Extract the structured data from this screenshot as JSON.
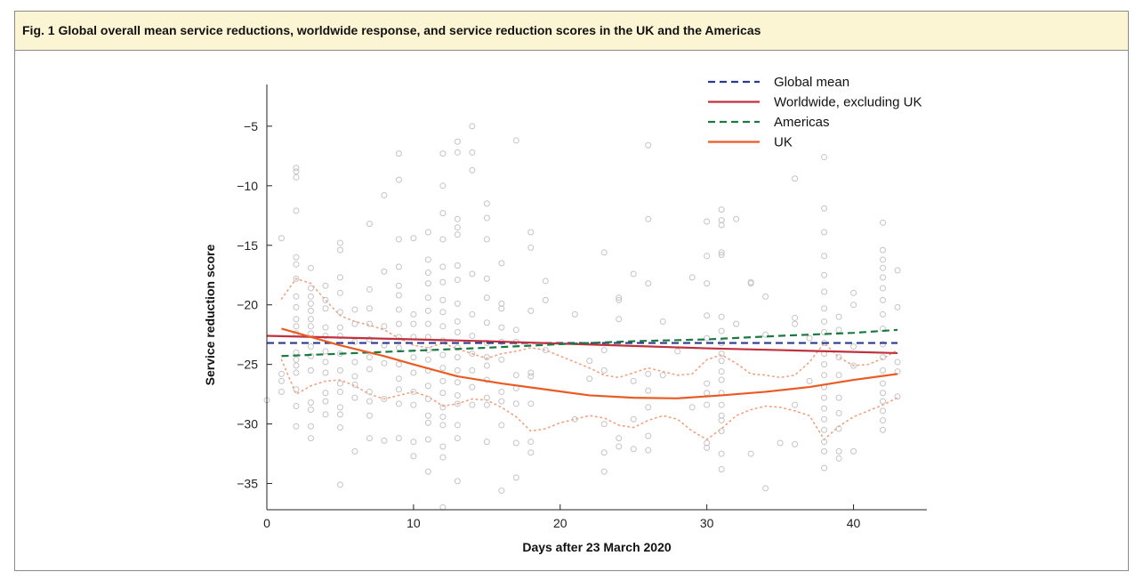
{
  "figure": {
    "caption": "Fig. 1 Global overall mean service reductions, worldwide response, and service reduction scores in the UK and the Americas"
  },
  "chart_data": {
    "type": "scatter",
    "xlabel": "Days after 23 March 2020",
    "ylabel": "Service reduction score",
    "xlim": [
      0,
      45
    ],
    "ylim": [
      -37.2,
      -1.5
    ],
    "xticks": [
      0,
      10,
      20,
      30,
      40
    ],
    "yticks": [
      -5,
      -10,
      -15,
      -20,
      -25,
      -30,
      -35
    ],
    "xtick_labels": [
      "0",
      "10",
      "20",
      "30",
      "40"
    ],
    "ytick_labels": [
      "−5",
      "−10",
      "−15",
      "−20",
      "−25",
      "−30",
      "−35"
    ],
    "legend_position": "top-right",
    "points": [
      [
        0,
        -28
      ],
      [
        1,
        -14.4
      ],
      [
        1,
        -25.8
      ],
      [
        1,
        -26.4
      ],
      [
        1,
        -27.3
      ],
      [
        2,
        -8.5
      ],
      [
        2,
        -8.8
      ],
      [
        2,
        -9.3
      ],
      [
        2,
        -12.1
      ],
      [
        2,
        -16
      ],
      [
        2,
        -16.6
      ],
      [
        2,
        -17.8
      ],
      [
        2,
        -19.3
      ],
      [
        2,
        -20.2
      ],
      [
        2,
        -21.2
      ],
      [
        2,
        -21.8
      ],
      [
        2,
        -22.4
      ],
      [
        2,
        -24
      ],
      [
        2,
        -24.6
      ],
      [
        2,
        -25.1
      ],
      [
        2,
        -25.7
      ],
      [
        2,
        -27.1
      ],
      [
        2,
        -28.5
      ],
      [
        2,
        -30.2
      ],
      [
        3,
        -16.9
      ],
      [
        3,
        -18.6
      ],
      [
        3,
        -19.3
      ],
      [
        3,
        -19.9
      ],
      [
        3,
        -20.5
      ],
      [
        3,
        -21.2
      ],
      [
        3,
        -21.8
      ],
      [
        3,
        -22.4
      ],
      [
        3,
        -23.5
      ],
      [
        3,
        -24.3
      ],
      [
        3,
        -25.5
      ],
      [
        3,
        -28.2
      ],
      [
        3,
        -28.8
      ],
      [
        3,
        -30.2
      ],
      [
        3,
        -31.2
      ],
      [
        4,
        -18.4
      ],
      [
        4,
        -19.6
      ],
      [
        4,
        -20.3
      ],
      [
        4,
        -21.9
      ],
      [
        4,
        -22.6
      ],
      [
        4,
        -23.9
      ],
      [
        4,
        -24.8
      ],
      [
        4,
        -25.7
      ],
      [
        4,
        -27.4
      ],
      [
        4,
        -28.1
      ],
      [
        4,
        -29.2
      ],
      [
        5,
        -14.8
      ],
      [
        5,
        -15.4
      ],
      [
        5,
        -17.7
      ],
      [
        5,
        -19
      ],
      [
        5,
        -20.6
      ],
      [
        5,
        -21.9
      ],
      [
        5,
        -22.6
      ],
      [
        5,
        -24.1
      ],
      [
        5,
        -25.5
      ],
      [
        5,
        -26.6
      ],
      [
        5,
        -27.3
      ],
      [
        5,
        -28.6
      ],
      [
        5,
        -29.2
      ],
      [
        5,
        -30.3
      ],
      [
        5,
        -35.1
      ],
      [
        6,
        -20.4
      ],
      [
        6,
        -21.6
      ],
      [
        6,
        -23.1
      ],
      [
        6,
        -24.8
      ],
      [
        6,
        -26
      ],
      [
        6,
        -26.7
      ],
      [
        6,
        -27.8
      ],
      [
        6,
        -32.3
      ],
      [
        7,
        -13.2
      ],
      [
        7,
        -18.7
      ],
      [
        7,
        -20.3
      ],
      [
        7,
        -21.6
      ],
      [
        7,
        -22.9
      ],
      [
        7,
        -24.4
      ],
      [
        7,
        -25.4
      ],
      [
        7,
        -27.3
      ],
      [
        7,
        -28.1
      ],
      [
        7,
        -29.3
      ],
      [
        7,
        -31.2
      ],
      [
        8,
        -10.8
      ],
      [
        8,
        -17.2
      ],
      [
        8,
        -21.8
      ],
      [
        8,
        -23.4
      ],
      [
        8,
        -24.9
      ],
      [
        8,
        -27.9
      ],
      [
        8,
        -31.4
      ],
      [
        9,
        -7.3
      ],
      [
        9,
        -9.5
      ],
      [
        9,
        -14.5
      ],
      [
        9,
        -16.8
      ],
      [
        9,
        -18.4
      ],
      [
        9,
        -19.2
      ],
      [
        9,
        -20.4
      ],
      [
        9,
        -21.6
      ],
      [
        9,
        -22.7
      ],
      [
        9,
        -23.6
      ],
      [
        9,
        -25
      ],
      [
        9,
        -26.2
      ],
      [
        9,
        -27.1
      ],
      [
        9,
        -28.3
      ],
      [
        9,
        -31.2
      ],
      [
        10,
        -14.4
      ],
      [
        10,
        -20.8
      ],
      [
        10,
        -21.6
      ],
      [
        10,
        -22.7
      ],
      [
        10,
        -24.4
      ],
      [
        10,
        -25.7
      ],
      [
        10,
        -27.3
      ],
      [
        10,
        -28.4
      ],
      [
        10,
        -31.5
      ],
      [
        10,
        -32.7
      ],
      [
        11,
        -13.9
      ],
      [
        11,
        -16.2
      ],
      [
        11,
        -17.3
      ],
      [
        11,
        -18.2
      ],
      [
        11,
        -19.4
      ],
      [
        11,
        -20.5
      ],
      [
        11,
        -21.6
      ],
      [
        11,
        -22.7
      ],
      [
        11,
        -23.8
      ],
      [
        11,
        -24.6
      ],
      [
        11,
        -25.5
      ],
      [
        11,
        -26.8
      ],
      [
        11,
        -27.9
      ],
      [
        11,
        -29.3
      ],
      [
        11,
        -29.9
      ],
      [
        11,
        -31.3
      ],
      [
        11,
        -34
      ],
      [
        12,
        -7.3
      ],
      [
        12,
        -10
      ],
      [
        12,
        -12.3
      ],
      [
        12,
        -14.5
      ],
      [
        12,
        -16.8
      ],
      [
        12,
        -18.1
      ],
      [
        12,
        -19.6
      ],
      [
        12,
        -20.6
      ],
      [
        12,
        -21.8
      ],
      [
        12,
        -23
      ],
      [
        12,
        -24.2
      ],
      [
        12,
        -25.3
      ],
      [
        12,
        -26.4
      ],
      [
        12,
        -27.4
      ],
      [
        12,
        -28.6
      ],
      [
        12,
        -29.4
      ],
      [
        12,
        -30.1
      ],
      [
        12,
        -31.9
      ],
      [
        12,
        -32.8
      ],
      [
        12,
        -37
      ],
      [
        13,
        -6.3
      ],
      [
        13,
        -7.2
      ],
      [
        13,
        -12.8
      ],
      [
        13,
        -13.5
      ],
      [
        13,
        -14.1
      ],
      [
        13,
        -16.7
      ],
      [
        13,
        -17.9
      ],
      [
        13,
        -19.9
      ],
      [
        13,
        -21.4
      ],
      [
        13,
        -22.3
      ],
      [
        13,
        -23.6
      ],
      [
        13,
        -24.4
      ],
      [
        13,
        -25.5
      ],
      [
        13,
        -26.5
      ],
      [
        13,
        -27.6
      ],
      [
        13,
        -28.3
      ],
      [
        13,
        -30.1
      ],
      [
        13,
        -31.2
      ],
      [
        13,
        -34.8
      ],
      [
        14,
        -5
      ],
      [
        14,
        -7.2
      ],
      [
        14,
        -8.7
      ],
      [
        14,
        -17.4
      ],
      [
        14,
        -20.8
      ],
      [
        14,
        -22.6
      ],
      [
        14,
        -24.1
      ],
      [
        14,
        -25.5
      ],
      [
        14,
        -26.9
      ],
      [
        14,
        -28.4
      ],
      [
        15,
        -11.5
      ],
      [
        15,
        -12.7
      ],
      [
        15,
        -14.5
      ],
      [
        15,
        -17.8
      ],
      [
        15,
        -19.4
      ],
      [
        15,
        -21.5
      ],
      [
        15,
        -23.2
      ],
      [
        15,
        -24.4
      ],
      [
        15,
        -25.1
      ],
      [
        15,
        -26.3
      ],
      [
        15,
        -27.8
      ],
      [
        15,
        -28.4
      ],
      [
        15,
        -31.5
      ],
      [
        16,
        -16.5
      ],
      [
        16,
        -19.9
      ],
      [
        16,
        -20.3
      ],
      [
        16,
        -21.9
      ],
      [
        16,
        -23.1
      ],
      [
        16,
        -24.6
      ],
      [
        16,
        -27.3
      ],
      [
        16,
        -28.1
      ],
      [
        16,
        -30.1
      ],
      [
        16,
        -35.6
      ],
      [
        17,
        -6.2
      ],
      [
        17,
        -22.1
      ],
      [
        17,
        -23.1
      ],
      [
        17,
        -25.9
      ],
      [
        17,
        -27
      ],
      [
        17,
        -28.3
      ],
      [
        17,
        -31.6
      ],
      [
        17,
        -34.5
      ],
      [
        18,
        -13.9
      ],
      [
        18,
        -15.2
      ],
      [
        18,
        -20.5
      ],
      [
        18,
        -25.7
      ],
      [
        18,
        -26
      ],
      [
        18,
        -28.3
      ],
      [
        18,
        -31.5
      ],
      [
        18,
        -32.4
      ],
      [
        19,
        -18
      ],
      [
        19,
        -19.6
      ],
      [
        19,
        -23.8
      ],
      [
        21,
        -20.8
      ],
      [
        21,
        -29.6
      ],
      [
        22,
        -24.7
      ],
      [
        22,
        -26.2
      ],
      [
        23,
        -15.6
      ],
      [
        23,
        -23.8
      ],
      [
        23,
        -25.5
      ],
      [
        23,
        -30
      ],
      [
        23,
        -32.4
      ],
      [
        23,
        -34
      ],
      [
        24,
        -19.4
      ],
      [
        24,
        -19.6
      ],
      [
        24,
        -21.2
      ],
      [
        24,
        -31.2
      ],
      [
        24,
        -31.9
      ],
      [
        25,
        -17.4
      ],
      [
        25,
        -26.4
      ],
      [
        25,
        -29.6
      ],
      [
        25,
        -32.1
      ],
      [
        26,
        -6.6
      ],
      [
        26,
        -12.8
      ],
      [
        26,
        -18.2
      ],
      [
        26,
        -25.8
      ],
      [
        26,
        -27.2
      ],
      [
        26,
        -28.6
      ],
      [
        26,
        -31
      ],
      [
        26,
        -32.2
      ],
      [
        27,
        -21.4
      ],
      [
        27,
        -25.9
      ],
      [
        28,
        -23.9
      ],
      [
        29,
        -17.7
      ],
      [
        29,
        -28.6
      ],
      [
        30,
        -13
      ],
      [
        30,
        -15.9
      ],
      [
        30,
        -18.2
      ],
      [
        30,
        -20.9
      ],
      [
        30,
        -22.8
      ],
      [
        30,
        -26.6
      ],
      [
        30,
        -27.4
      ],
      [
        30,
        -28.4
      ],
      [
        30,
        -31.6
      ],
      [
        30,
        -32
      ],
      [
        31,
        -12
      ],
      [
        31,
        -12.9
      ],
      [
        31,
        -13.3
      ],
      [
        31,
        -15.6
      ],
      [
        31,
        -15.8
      ],
      [
        31,
        -21
      ],
      [
        31,
        -22.2
      ],
      [
        31,
        -23.2
      ],
      [
        31,
        -24.1
      ],
      [
        31,
        -24.7
      ],
      [
        31,
        -25.6
      ],
      [
        31,
        -26.3
      ],
      [
        31,
        -27.4
      ],
      [
        31,
        -28.4
      ],
      [
        31,
        -29.3
      ],
      [
        31,
        -29.7
      ],
      [
        31,
        -30.6
      ],
      [
        31,
        -32.5
      ],
      [
        31,
        -33.8
      ],
      [
        32,
        -12.8
      ],
      [
        32,
        -21.6
      ],
      [
        33,
        -18.1
      ],
      [
        33,
        -18.2
      ],
      [
        33,
        -32.5
      ],
      [
        34,
        -19.3
      ],
      [
        34,
        -22.5
      ],
      [
        34,
        -35.4
      ],
      [
        35,
        -31.6
      ],
      [
        36,
        -9.4
      ],
      [
        36,
        -21.1
      ],
      [
        36,
        -21.6
      ],
      [
        36,
        -28.4
      ],
      [
        36,
        -31.7
      ],
      [
        37,
        -22.8
      ],
      [
        37,
        -26.4
      ],
      [
        38,
        -7.6
      ],
      [
        38,
        -11.9
      ],
      [
        38,
        -13.9
      ],
      [
        38,
        -15.9
      ],
      [
        38,
        -17.5
      ],
      [
        38,
        -18.9
      ],
      [
        38,
        -20.3
      ],
      [
        38,
        -21.4
      ],
      [
        38,
        -22.3
      ],
      [
        38,
        -23.2
      ],
      [
        38,
        -24.1
      ],
      [
        38,
        -25
      ],
      [
        38,
        -25.9
      ],
      [
        38,
        -26.9
      ],
      [
        38,
        -27.8
      ],
      [
        38,
        -28.7
      ],
      [
        38,
        -29.6
      ],
      [
        38,
        -30.5
      ],
      [
        38,
        -31.5
      ],
      [
        38,
        -32.3
      ],
      [
        38,
        -33.7
      ],
      [
        39,
        -21
      ],
      [
        39,
        -22.1
      ],
      [
        39,
        -24.4
      ],
      [
        39,
        -25.9
      ],
      [
        39,
        -27.8
      ],
      [
        39,
        -29.1
      ],
      [
        39,
        -30.4
      ],
      [
        39,
        -32.3
      ],
      [
        39,
        -32.9
      ],
      [
        40,
        -19
      ],
      [
        40,
        -20
      ],
      [
        40,
        -23.5
      ],
      [
        40,
        -25.1
      ],
      [
        40,
        -32.3
      ],
      [
        42,
        -13.1
      ],
      [
        42,
        -15.4
      ],
      [
        42,
        -16.2
      ],
      [
        42,
        -16.9
      ],
      [
        42,
        -17.7
      ],
      [
        42,
        -18.6
      ],
      [
        42,
        -19.6
      ],
      [
        42,
        -20.8
      ],
      [
        42,
        -22
      ],
      [
        42,
        -23.3
      ],
      [
        42,
        -24.4
      ],
      [
        42,
        -25.5
      ],
      [
        42,
        -26.6
      ],
      [
        42,
        -27.4
      ],
      [
        42,
        -28.1
      ],
      [
        42,
        -28.9
      ],
      [
        42,
        -29.7
      ],
      [
        42,
        -30.5
      ],
      [
        43,
        -17.1
      ],
      [
        43,
        -20.2
      ],
      [
        43,
        -24.8
      ],
      [
        43,
        -25.6
      ],
      [
        43,
        -27.7
      ]
    ],
    "series": [
      {
        "name": "Global mean",
        "style": "dashed",
        "color": "#2b3a8f",
        "x": [
          0,
          43
        ],
        "y": [
          -23.2,
          -23.2
        ]
      },
      {
        "name": "Worldwide, excluding UK",
        "style": "solid",
        "color": "#c0303d",
        "x": [
          0,
          5,
          10,
          15,
          20,
          25,
          30,
          35,
          40,
          43
        ],
        "y": [
          -22.6,
          -22.75,
          -22.9,
          -23.05,
          -23.25,
          -23.45,
          -23.65,
          -23.8,
          -23.95,
          -24.05
        ]
      },
      {
        "name": "Americas",
        "style": "dashed",
        "color": "#1a7a3f",
        "x": [
          1,
          5,
          10,
          15,
          20,
          25,
          30,
          35,
          40,
          43
        ],
        "y": [
          -24.3,
          -24.1,
          -23.85,
          -23.6,
          -23.3,
          -23.05,
          -22.9,
          -22.6,
          -22.35,
          -22.1
        ]
      },
      {
        "name": "UK",
        "style": "solid",
        "color": "#ea5b24",
        "x": [
          1,
          3,
          5,
          8,
          10,
          13,
          16,
          19,
          22,
          25,
          28,
          31,
          34,
          37,
          40,
          43
        ],
        "y": [
          -22,
          -22.7,
          -23.4,
          -24.3,
          -25,
          -26,
          -26.6,
          -27.1,
          -27.6,
          -27.8,
          -27.85,
          -27.6,
          -27.3,
          -26.9,
          -26.3,
          -25.8
        ]
      }
    ],
    "confidence_band": {
      "color": "#f4a07e",
      "style": "dotted",
      "x": [
        1,
        2,
        3,
        4,
        5,
        6,
        7,
        8,
        9,
        10,
        11,
        12,
        13,
        14,
        15,
        16,
        17,
        18,
        19,
        20,
        21,
        22,
        23,
        24,
        25,
        26,
        27,
        28,
        29,
        30,
        31,
        32,
        33,
        34,
        35,
        36,
        37,
        38,
        39,
        40,
        41,
        42,
        43
      ],
      "upper": [
        -19.5,
        -17.8,
        -18.2,
        -19.6,
        -20.9,
        -21.4,
        -21.7,
        -22.1,
        -22.8,
        -23.4,
        -23.6,
        -23.2,
        -23.7,
        -24.1,
        -24.5,
        -24.1,
        -23.9,
        -23.6,
        -23.8,
        -24.3,
        -24.8,
        -25.3,
        -25.9,
        -26.1,
        -25.7,
        -25.3,
        -25.6,
        -25.9,
        -25.8,
        -24.6,
        -24.2,
        -24.9,
        -25.8,
        -25.9,
        -26.1,
        -25.9,
        -24.8,
        -23.2,
        -24.4,
        -25.1,
        -25.0,
        -24.5,
        -23.8
      ],
      "lower": [
        -24.6,
        -27.5,
        -26.8,
        -26.4,
        -26.3,
        -26.8,
        -27.5,
        -27.9,
        -27.6,
        -27.3,
        -27.7,
        -28.5,
        -28.3,
        -27.9,
        -28.0,
        -28.6,
        -29.4,
        -30.6,
        -30.4,
        -29.9,
        -29.6,
        -29.3,
        -29.5,
        -30.1,
        -30.3,
        -29.7,
        -29.3,
        -29.6,
        -30.6,
        -31.3,
        -30.4,
        -29.3,
        -28.8,
        -28.5,
        -28.6,
        -28.9,
        -29.3,
        -31.3,
        -30.2,
        -29.4,
        -28.9,
        -28.4,
        -27.8
      ]
    }
  }
}
